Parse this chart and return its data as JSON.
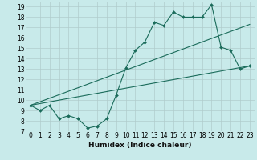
{
  "xlabel": "Humidex (Indice chaleur)",
  "ylabel": "",
  "background_color": "#c8eaea",
  "grid_color": "#b0cccc",
  "line_color": "#1a6b5a",
  "xlim": [
    -0.5,
    23.5
  ],
  "ylim": [
    7,
    19.5
  ],
  "xticks": [
    0,
    1,
    2,
    3,
    4,
    5,
    6,
    7,
    8,
    9,
    10,
    11,
    12,
    13,
    14,
    15,
    16,
    17,
    18,
    19,
    20,
    21,
    22,
    23
  ],
  "yticks": [
    7,
    8,
    9,
    10,
    11,
    12,
    13,
    14,
    15,
    16,
    17,
    18,
    19
  ],
  "line1_x": [
    0,
    1,
    2,
    3,
    4,
    5,
    6,
    7,
    8,
    9,
    10,
    11,
    12,
    13,
    14,
    15,
    16,
    17,
    18,
    19,
    20,
    21,
    22,
    23
  ],
  "line1_y": [
    9.5,
    9.0,
    9.5,
    8.2,
    8.5,
    8.2,
    7.3,
    7.5,
    8.2,
    10.5,
    13.1,
    14.8,
    15.6,
    17.5,
    17.2,
    18.5,
    18.0,
    18.0,
    18.0,
    19.2,
    15.1,
    14.8,
    13.0,
    13.3
  ],
  "line2_x": [
    0,
    23
  ],
  "line2_y": [
    9.5,
    13.3
  ],
  "line3_x": [
    0,
    23
  ],
  "line3_y": [
    9.5,
    17.3
  ],
  "xlabel_fontsize": 6.5,
  "tick_fontsize": 5.5
}
